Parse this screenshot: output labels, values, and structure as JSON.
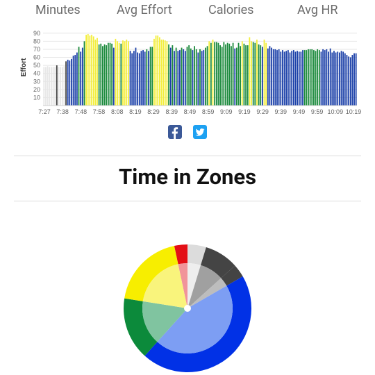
{
  "stats": {
    "items": [
      {
        "label": "Minutes"
      },
      {
        "label": "Avg Effort"
      },
      {
        "label": "Calories"
      },
      {
        "label": "Avg HR"
      }
    ]
  },
  "social": {
    "facebook_icon": "facebook-icon",
    "twitter_icon": "twitter-icon"
  },
  "section": {
    "title": "Time in Zones"
  },
  "colors": {
    "gray": "#e6e6e6",
    "darkgray": "#444444",
    "blue": "#1a3fa8",
    "green": "#1b8a3c",
    "yellow": "#f3ee3a",
    "red": "#e30f16"
  },
  "chart_data": [
    {
      "type": "bar",
      "ylabel": "Effort",
      "ylim": [
        0,
        95
      ],
      "yticks": [
        10,
        20,
        30,
        40,
        50,
        60,
        70,
        80,
        90
      ],
      "xticklabels": [
        "7:27",
        "7:38",
        "7:48",
        "7:58",
        "8:08",
        "8:19",
        "8:29",
        "8:39",
        "8:49",
        "8:59",
        "9:09",
        "9:19",
        "9:29",
        "9:39",
        "9:49",
        "9:59",
        "10:09",
        "10:19"
      ],
      "grid": true,
      "values": [
        48,
        48,
        49,
        48,
        48,
        48,
        48,
        50,
        48,
        48,
        48,
        49,
        55,
        57,
        56,
        58,
        62,
        63,
        66,
        73,
        67,
        72,
        80,
        88,
        89,
        87,
        88,
        86,
        82,
        84,
        76,
        77,
        74,
        76,
        75,
        78,
        78,
        77,
        72,
        83,
        80,
        78,
        77,
        81,
        80,
        82,
        80,
        68,
        65,
        68,
        72,
        66,
        65,
        68,
        69,
        67,
        70,
        68,
        73,
        73,
        83,
        87,
        87,
        85,
        82,
        82,
        81,
        80,
        76,
        72,
        75,
        68,
        72,
        68,
        69,
        72,
        70,
        68,
        73,
        75,
        71,
        69,
        74,
        70,
        66,
        70,
        68,
        69,
        72,
        74,
        80,
        78,
        82,
        79,
        79,
        78,
        75,
        73,
        79,
        76,
        78,
        77,
        74,
        78,
        71,
        72,
        78,
        74,
        80,
        77,
        75,
        75,
        85,
        80,
        79,
        78,
        82,
        76,
        75,
        73,
        82,
        78,
        71,
        74,
        72,
        70,
        70,
        69,
        70,
        67,
        69,
        67,
        68,
        69,
        66,
        68,
        69,
        67,
        68,
        67,
        67,
        69,
        69,
        69,
        70,
        70,
        70,
        69,
        68,
        70,
        69,
        67,
        70,
        69,
        70,
        67,
        71,
        66,
        68,
        66,
        67,
        66,
        68,
        67,
        65,
        63,
        61,
        60,
        63,
        65,
        65
      ],
      "zones": [
        "gray",
        "gray",
        "gray",
        "gray",
        "gray",
        "gray",
        "gray",
        "darkgray",
        "gray",
        "gray",
        "gray",
        "gray",
        "darkgray",
        "blue",
        "blue",
        "blue",
        "blue",
        "blue",
        "blue",
        "green",
        "blue",
        "blue",
        "green",
        "yellow",
        "yellow",
        "yellow",
        "yellow",
        "yellow",
        "yellow",
        "yellow",
        "green",
        "green",
        "green",
        "green",
        "green",
        "green",
        "green",
        "green",
        "blue",
        "yellow",
        "yellow",
        "yellow",
        "green",
        "yellow",
        "yellow",
        "yellow",
        "yellow",
        "blue",
        "blue",
        "blue",
        "blue",
        "blue",
        "blue",
        "blue",
        "blue",
        "blue",
        "green",
        "blue",
        "green",
        "green",
        "yellow",
        "yellow",
        "yellow",
        "yellow",
        "yellow",
        "yellow",
        "yellow",
        "yellow",
        "green",
        "blue",
        "green",
        "blue",
        "green",
        "blue",
        "blue",
        "green",
        "blue",
        "blue",
        "green",
        "green",
        "green",
        "blue",
        "green",
        "green",
        "blue",
        "green",
        "blue",
        "blue",
        "green",
        "green",
        "yellow",
        "green",
        "yellow",
        "green",
        "green",
        "green",
        "green",
        "green",
        "green",
        "green",
        "green",
        "green",
        "green",
        "green",
        "blue",
        "green",
        "green",
        "green",
        "yellow",
        "green",
        "green",
        "green",
        "yellow",
        "yellow",
        "green",
        "green",
        "yellow",
        "green",
        "green",
        "blue",
        "yellow",
        "yellow",
        "blue",
        "blue",
        "blue",
        "blue",
        "blue",
        "blue",
        "blue",
        "blue",
        "blue",
        "blue",
        "blue",
        "blue",
        "blue",
        "blue",
        "blue",
        "blue",
        "blue",
        "blue",
        "blue",
        "blue",
        "green",
        "green",
        "green",
        "green",
        "green",
        "green",
        "green",
        "green",
        "green",
        "blue",
        "blue",
        "blue",
        "blue",
        "blue",
        "blue",
        "blue",
        "blue",
        "blue",
        "blue",
        "blue",
        "blue",
        "blue",
        "blue",
        "blue",
        "blue",
        "blue",
        "blue",
        "blue",
        "blue",
        "blue"
      ]
    },
    {
      "type": "pie",
      "title": "Time in Zones",
      "labels": [
        "red",
        "gray",
        "darkgray",
        "mid-gray",
        "blue",
        "green",
        "yellow"
      ],
      "values": [
        4,
        5,
        9,
        8,
        38,
        19,
        17
      ]
    }
  ]
}
